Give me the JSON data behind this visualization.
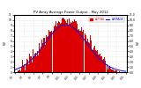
{
  "title": "PV Array Average Power Output - May 2012",
  "legend_actual": "ACTUAL",
  "legend_average": "AVERAGE",
  "ylabel_left": "W",
  "ylabel_right": "W",
  "ymax": 11000,
  "ymin": 0,
  "yticks": [
    0,
    1000,
    2000,
    3000,
    4000,
    5000,
    6000,
    7000,
    8000,
    9000,
    10000,
    11000
  ],
  "ytick_labels_right": [
    "0.0",
    "1.0",
    "2.0",
    "3.0",
    "4.0",
    "5.0",
    "6.0",
    "7.0",
    "8.0",
    "9.0",
    "10.0",
    "11.0"
  ],
  "ytick_labels_left": [
    "0",
    "1k",
    "2k",
    "3k",
    "4k",
    "5k",
    "6k",
    "7k",
    "8k",
    "9k",
    "10k",
    "11k"
  ],
  "bar_color": "#dd0000",
  "avg_color": "#0000ee",
  "background_color": "#ffffff",
  "plot_bg_color": "#ffffff",
  "grid_color": "#cccccc",
  "title_color": "#000000",
  "n_bars": 288
}
